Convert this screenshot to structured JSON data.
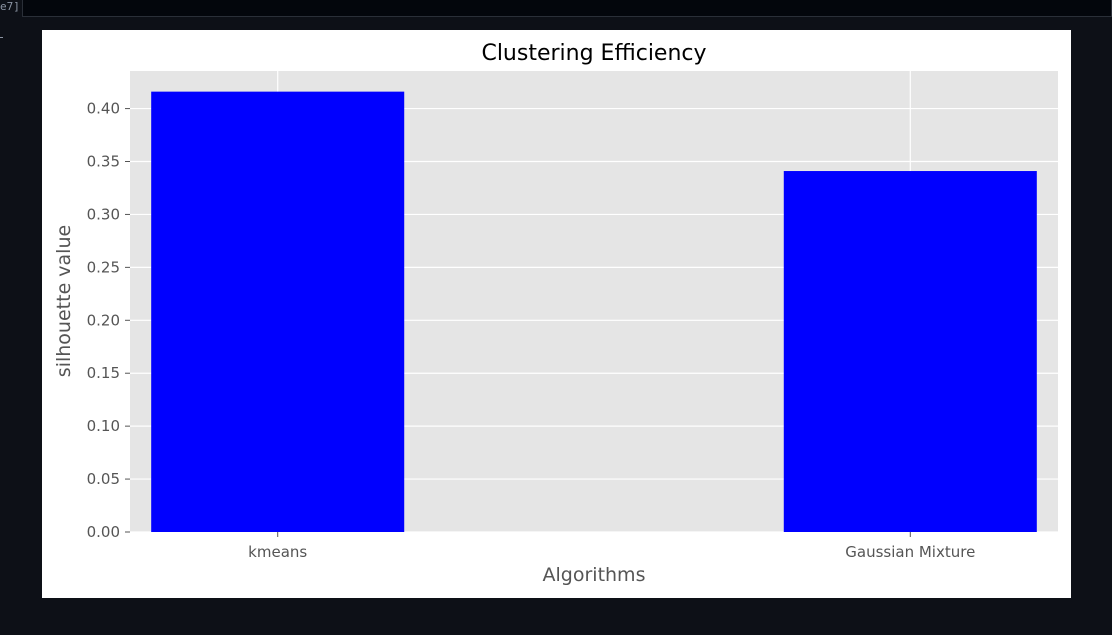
{
  "notebook": {
    "prompt_label": "e7]"
  },
  "chart_data": {
    "type": "bar",
    "title": "Clustering Efficiency",
    "xlabel": "Algorithms",
    "ylabel": "silhouette value",
    "categories": [
      "kmeans",
      "Gaussian Mixture"
    ],
    "values": [
      0.416,
      0.341
    ],
    "ylim": [
      0,
      0.4355
    ],
    "yticks": [
      "0.00",
      "0.05",
      "0.10",
      "0.15",
      "0.20",
      "0.25",
      "0.30",
      "0.35",
      "0.40"
    ],
    "grid": true,
    "style": "ggplot",
    "colors": {
      "bar": "#0000ff",
      "plot_bg": "#e5e5e5",
      "grid": "#ffffff",
      "tick_text": "#555555",
      "title_text": "#000000"
    }
  }
}
